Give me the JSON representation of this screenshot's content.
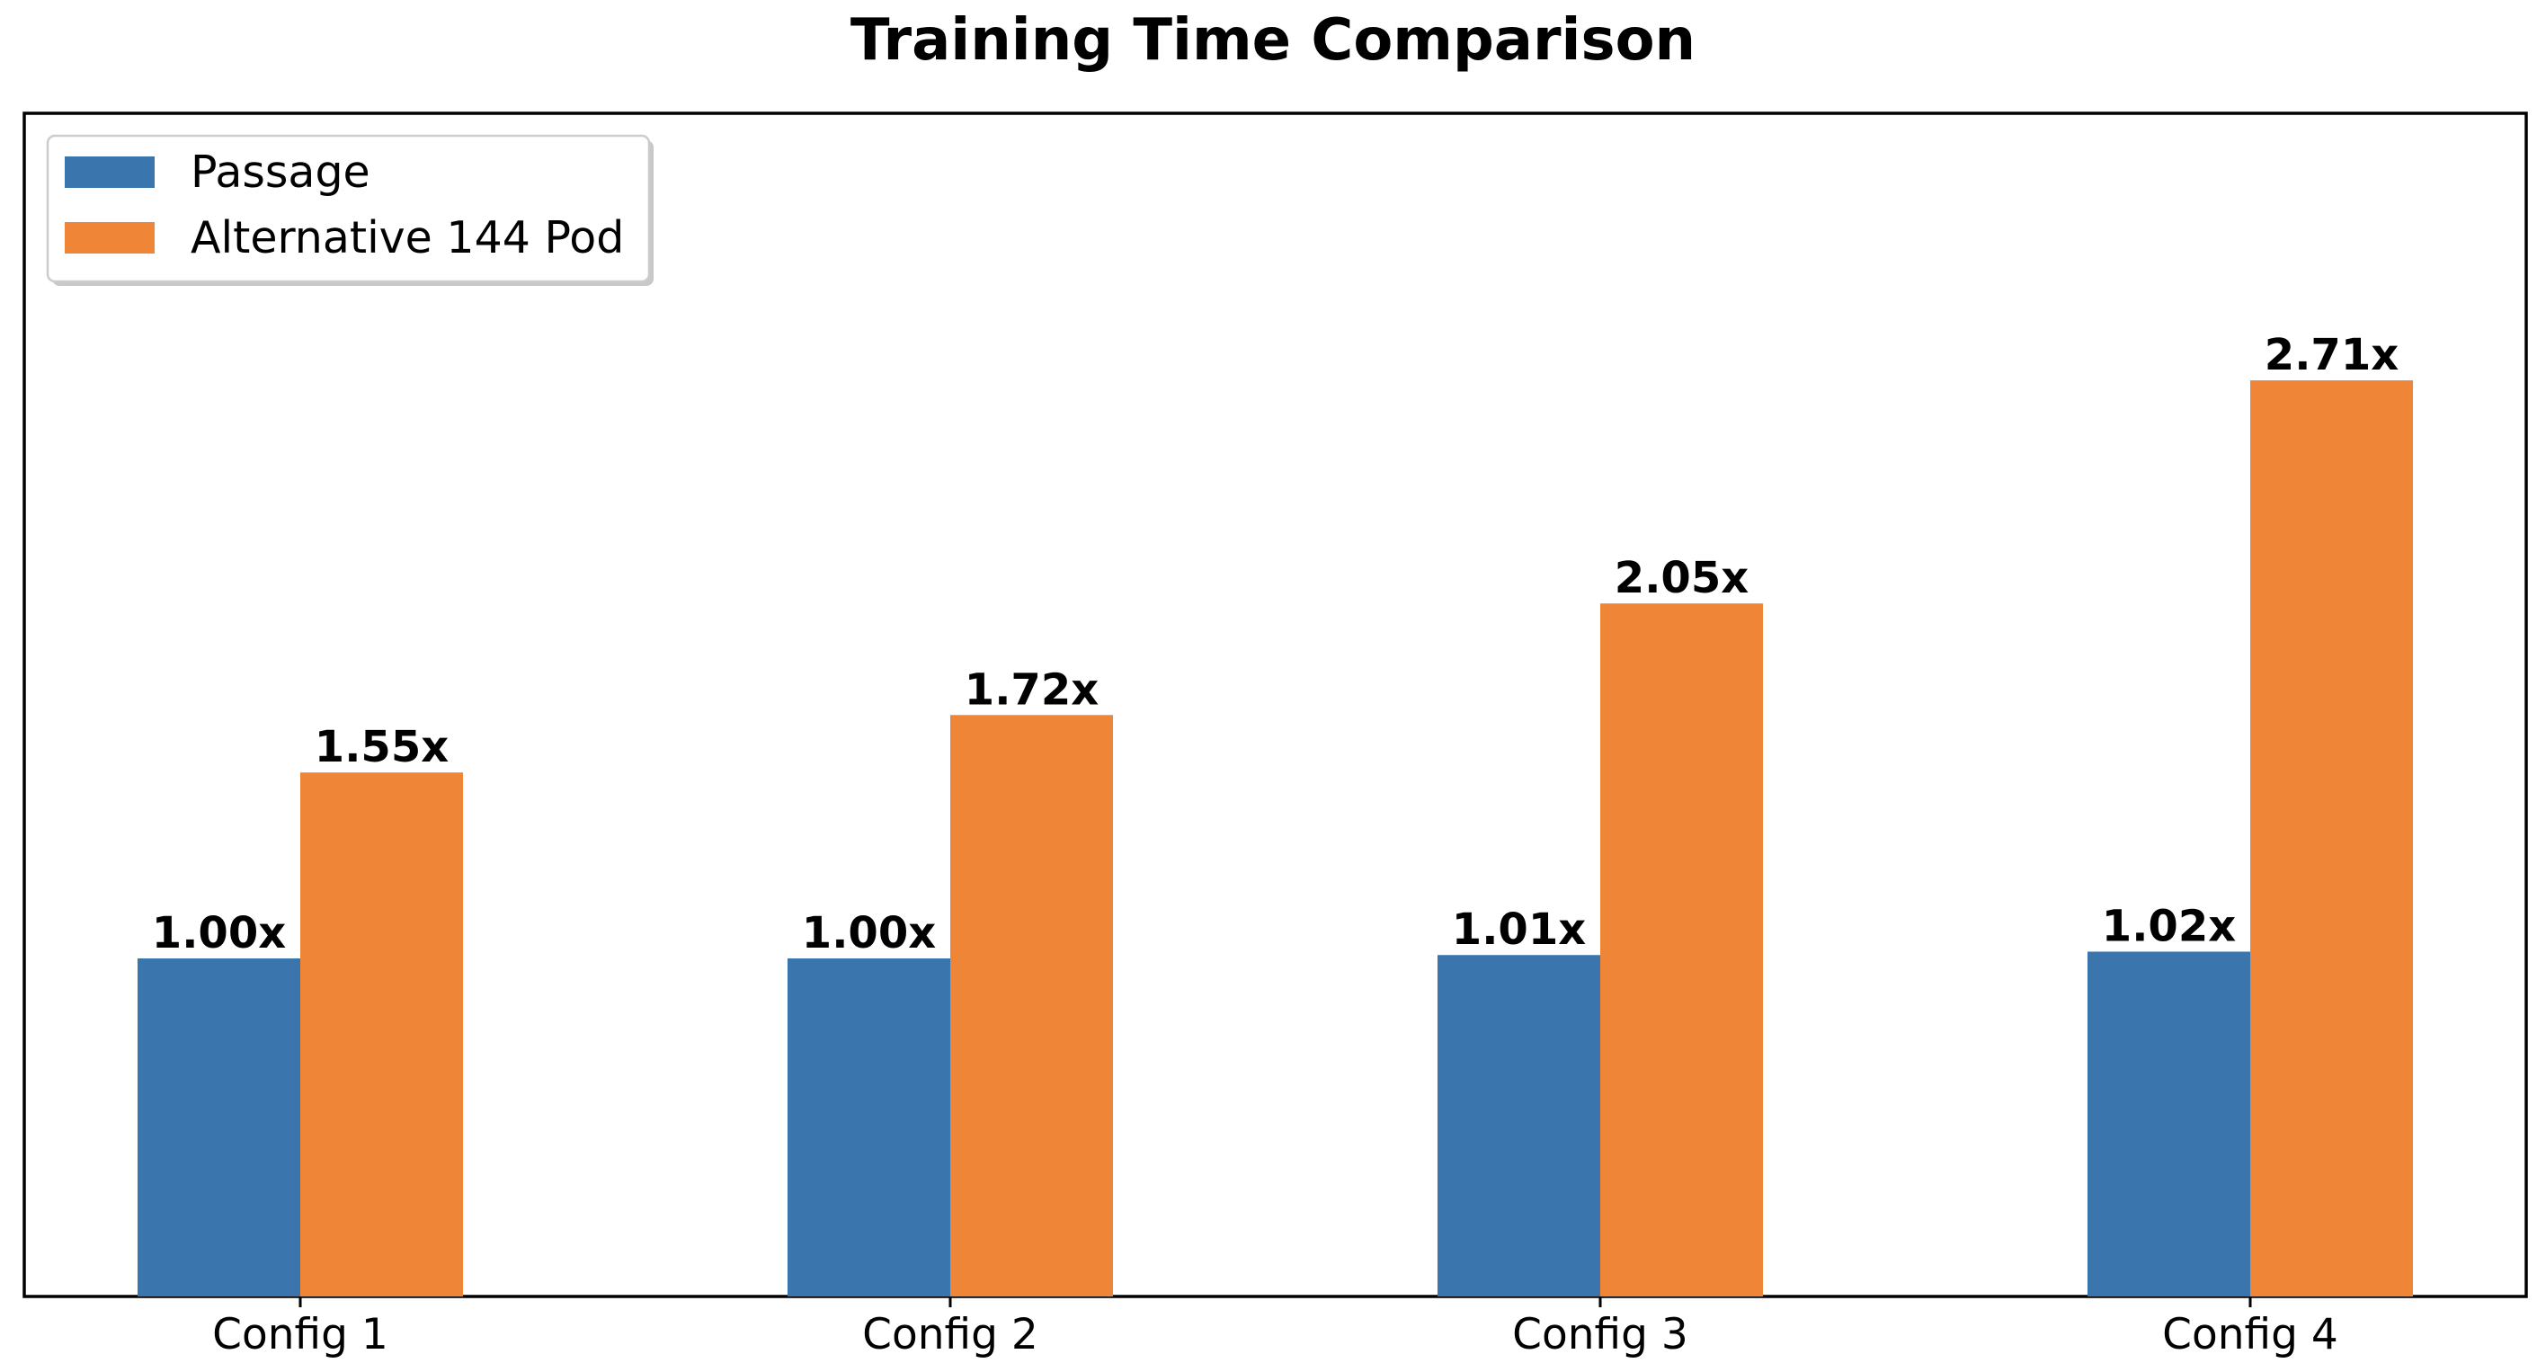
{
  "chart_data": {
    "type": "bar",
    "title": "Training Time Comparison",
    "xlabel": "",
    "ylabel": "",
    "categories": [
      "Config 1",
      "Config 2",
      "Config 3",
      "Config 4"
    ],
    "series": [
      {
        "name": "Passage",
        "values": [
          1.0,
          1.0,
          1.01,
          1.02
        ],
        "labels": [
          "1.00x",
          "1.00x",
          "1.01x",
          "1.02x"
        ],
        "color": "#3a76ad"
      },
      {
        "name": "Alternative 144 Pod",
        "values": [
          1.55,
          1.72,
          2.05,
          2.71
        ],
        "labels": [
          "1.55x",
          "1.72x",
          "2.05x",
          "2.71x"
        ],
        "color": "#ef8537"
      }
    ],
    "ylim": [
      0,
      3.5
    ],
    "y_ticks_visible": false,
    "grid": false,
    "legend_position": "top-left"
  }
}
